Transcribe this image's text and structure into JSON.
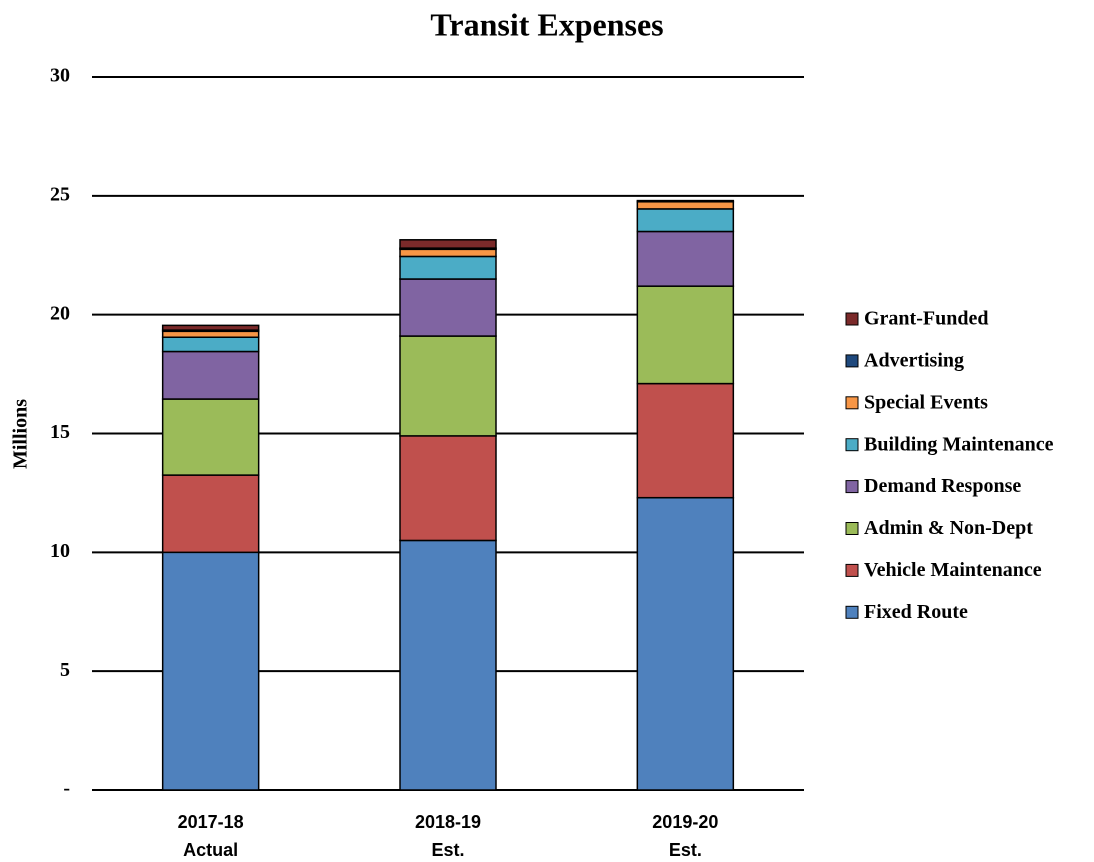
{
  "chart_data": {
    "type": "stacked_bar",
    "title": "Transit Expenses",
    "y_label": "Millions",
    "categories": [
      [
        "2017-18",
        "Actual"
      ],
      [
        "2018-19",
        "Est."
      ],
      [
        "2019-20",
        "Est."
      ]
    ],
    "series": [
      {
        "name": "Fixed Route",
        "color": "#4f81bd",
        "values": [
          10.0,
          10.5,
          12.3
        ]
      },
      {
        "name": "Vehicle Maintenance",
        "color": "#c0504d",
        "values": [
          3.25,
          4.4,
          4.8
        ]
      },
      {
        "name": "Admin & Non-Dept",
        "color": "#9bbb59",
        "values": [
          3.2,
          4.2,
          4.1
        ]
      },
      {
        "name": "Demand Response",
        "color": "#8064a2",
        "values": [
          2.0,
          2.4,
          2.3
        ]
      },
      {
        "name": "Building Maintenance",
        "color": "#4bacc6",
        "values": [
          0.6,
          0.95,
          0.95
        ]
      },
      {
        "name": "Special Events",
        "color": "#f79646",
        "values": [
          0.25,
          0.3,
          0.3
        ]
      },
      {
        "name": "Advertising",
        "color": "#1f497d",
        "values": [
          0.05,
          0.05,
          0.05
        ]
      },
      {
        "name": "Grant-Funded",
        "color": "#7b2a2a",
        "values": [
          0.2,
          0.35,
          0
        ]
      }
    ],
    "ylim": [
      0,
      30
    ],
    "yticks": [
      {
        "value": 0,
        "label": "-"
      },
      5,
      10,
      15,
      20,
      25,
      30
    ],
    "grid": true,
    "legend": "right"
  }
}
